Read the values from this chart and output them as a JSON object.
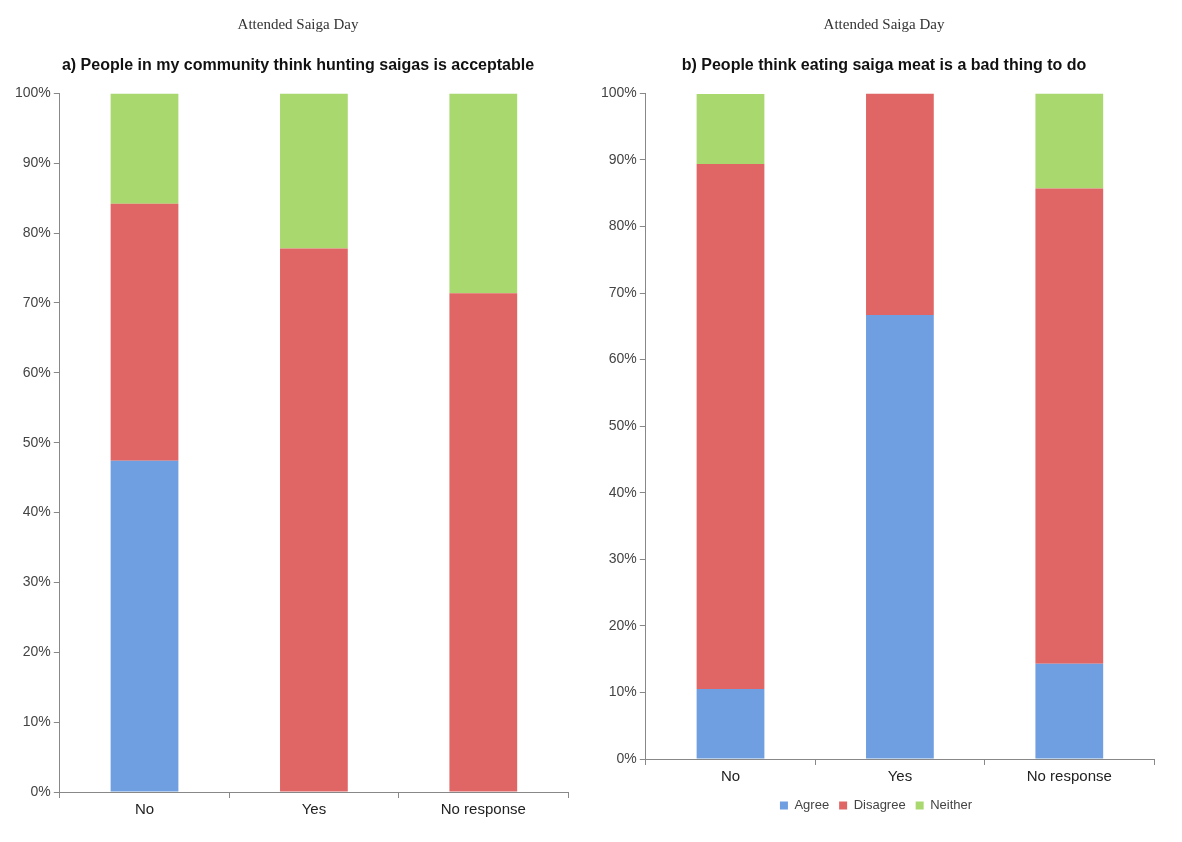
{
  "chart_data": [
    {
      "type": "bar",
      "stacked": true,
      "xlabel": "Attended Saiga Day",
      "title": "a) People in my community think hunting saigas is acceptable",
      "categories": [
        "No",
        "Yes",
        "No response"
      ],
      "ylim": [
        0,
        100
      ],
      "yticks": [
        {
          "value": 0,
          "label": "0%"
        },
        {
          "value": 10,
          "label": "10%"
        },
        {
          "value": 20,
          "label": "20%"
        },
        {
          "value": 30,
          "label": "30%"
        },
        {
          "value": 40,
          "label": "40%"
        },
        {
          "value": 50,
          "label": "50%"
        },
        {
          "value": 60,
          "label": "60%"
        },
        {
          "value": 70,
          "label": "70%"
        },
        {
          "value": 80,
          "label": "80%"
        },
        {
          "value": 90,
          "label": "90%"
        },
        {
          "value": 100,
          "label": "100%"
        }
      ],
      "grid": false,
      "legend": false,
      "series": [
        {
          "color": "#6f9fe0",
          "values": [
            47.4,
            0,
            0
          ]
        },
        {
          "color": "#e06666",
          "values": [
            36.8,
            77.8,
            71.4
          ]
        },
        {
          "color": "#a9d86e",
          "values": [
            15.8,
            22.2,
            28.6
          ]
        }
      ]
    },
    {
      "type": "bar",
      "stacked": true,
      "xlabel": "Attended Saiga Day",
      "title": "b) People think eating saiga meat is a bad thing to do",
      "categories": [
        "No",
        "Yes",
        "No response"
      ],
      "ylim": [
        0,
        100
      ],
      "yticks": [
        {
          "value": 0,
          "label": "0%"
        },
        {
          "value": 10,
          "label": "10%"
        },
        {
          "value": 20,
          "label": "20%"
        },
        {
          "value": 30,
          "label": "30%"
        },
        {
          "value": 40,
          "label": "40%"
        },
        {
          "value": 50,
          "label": "50%"
        },
        {
          "value": 60,
          "label": "60%"
        },
        {
          "value": 70,
          "label": "70%"
        },
        {
          "value": 80,
          "label": "80%"
        },
        {
          "value": 90,
          "label": "90%"
        },
        {
          "value": 100,
          "label": "100%"
        }
      ],
      "grid": false,
      "legend": "bottom",
      "series": [
        {
          "name": "Agree",
          "color": "#6f9fe0",
          "values": [
            10.5,
            66.7,
            14.3
          ]
        },
        {
          "name": "Disagree",
          "color": "#e06666",
          "values": [
            78.9,
            33.3,
            71.4
          ]
        },
        {
          "name": "Neither",
          "color": "#a9d86e",
          "values": [
            10.5,
            0,
            14.3
          ]
        }
      ]
    }
  ]
}
